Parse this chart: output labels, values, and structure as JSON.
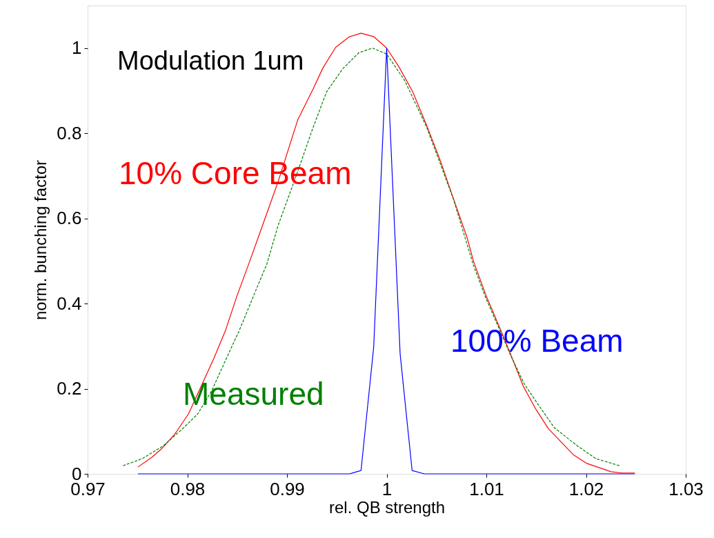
{
  "chart_data": {
    "type": "line",
    "xlabel": "rel. QB strength",
    "ylabel": "norm. bunching factor",
    "annotations": [
      "Modulation 1um"
    ],
    "xlim": [
      0.97,
      1.03
    ],
    "xticks": [
      0.97,
      0.98,
      0.99,
      1,
      1.01,
      1.02,
      1.03
    ],
    "ylim": [
      0,
      1.1
    ],
    "yticks": [
      0,
      0.2,
      0.4,
      0.6,
      0.8,
      1
    ],
    "grid": false,
    "marker": "none",
    "series": [
      {
        "name": "10% Core Beam",
        "color": "#ff0000",
        "line_style": "solid",
        "x": [
          0.97505,
          0.97644,
          0.97747,
          0.97874,
          0.98012,
          0.98151,
          0.98266,
          0.98382,
          0.98497,
          0.98624,
          0.98739,
          0.98912,
          0.99109,
          0.99258,
          0.99362,
          0.99489,
          0.99621,
          0.99743,
          0.9987,
          1.0,
          1.00123,
          1.00262,
          1.004,
          1.00539,
          1.00666,
          1.00804,
          1.00873,
          1.01,
          1.01127,
          1.01242,
          1.0137,
          1.01496,
          1.01623,
          1.01877,
          1.02004,
          1.0225,
          1.0236,
          1.0249
        ],
        "values": [
          0.016,
          0.039,
          0.06,
          0.093,
          0.141,
          0.212,
          0.271,
          0.336,
          0.417,
          0.498,
          0.573,
          0.687,
          0.832,
          0.902,
          0.954,
          1.002,
          1.026,
          1.035,
          1.027,
          1.0,
          0.956,
          0.897,
          0.819,
          0.735,
          0.649,
          0.557,
          0.498,
          0.417,
          0.347,
          0.282,
          0.206,
          0.152,
          0.106,
          0.044,
          0.025,
          0.005,
          0.002,
          0.002
        ]
      },
      {
        "name": "Measured",
        "color": "#008000",
        "line_style": "dashed",
        "x": [
          0.97355,
          0.97551,
          0.97759,
          0.97967,
          0.98105,
          0.98244,
          0.98382,
          0.9852,
          0.98682,
          0.98797,
          0.98912,
          0.99097,
          0.99258,
          0.99397,
          0.99558,
          0.9972,
          0.99858,
          1.0,
          1.0018,
          1.004,
          1.0067,
          1.0087,
          1.01,
          1.0113,
          1.0124,
          1.01381,
          1.01519,
          1.0168,
          1.01911,
          1.02096,
          1.02338
        ],
        "values": [
          0.019,
          0.036,
          0.066,
          0.109,
          0.141,
          0.195,
          0.266,
          0.336,
          0.428,
          0.492,
          0.584,
          0.703,
          0.811,
          0.897,
          0.951,
          0.989,
          1.0,
          0.986,
          0.924,
          0.815,
          0.645,
          0.49,
          0.41,
          0.34,
          0.28,
          0.211,
          0.163,
          0.109,
          0.066,
          0.036,
          0.019
        ]
      },
      {
        "name": "100% Beam",
        "color": "#0000ff",
        "line_style": "solid",
        "x": [
          0.97505,
          0.99628,
          0.99743,
          0.9987,
          1.0,
          1.00135,
          1.00255,
          1.00377,
          1.0249
        ],
        "values": [
          0,
          0,
          0.008,
          0.298,
          1.0,
          0.282,
          0.008,
          0,
          0
        ]
      }
    ]
  }
}
